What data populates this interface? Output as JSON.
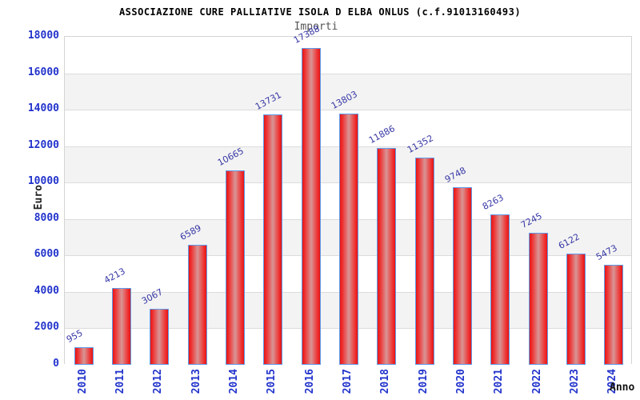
{
  "chart_data": {
    "type": "bar",
    "title": "ASSOCIAZIONE CURE PALLIATIVE ISOLA D ELBA ONLUS (c.f.91013160493)",
    "subtitle": "Importi",
    "xlabel": "Anno",
    "ylabel": "Euro",
    "categories": [
      "2010",
      "2011",
      "2012",
      "2013",
      "2014",
      "2015",
      "2016",
      "2017",
      "2018",
      "2019",
      "2020",
      "2021",
      "2022",
      "2023",
      "2024"
    ],
    "values": [
      955,
      4213,
      3067,
      6589,
      10665,
      13731,
      17388,
      13803,
      11886,
      11352,
      9748,
      8263,
      7245,
      6122,
      5473
    ],
    "ylim": [
      0,
      18000
    ],
    "ytick_step": 2000,
    "grid": true,
    "legend": false,
    "colors": {
      "bar_edge": "#e41616",
      "bar_mid": "#ef3030",
      "bar_center": "#d99595",
      "bar_border": "#5f9bea",
      "axis_tick_label": "#2233cc",
      "value_label": "#3535a5",
      "band_gray": "#f3f3f3",
      "band_white": "#ffffff",
      "gridline": "#dcdcdc",
      "plot_border": "#d4d4d4",
      "title": "#000000",
      "subtitle": "#555555"
    }
  }
}
